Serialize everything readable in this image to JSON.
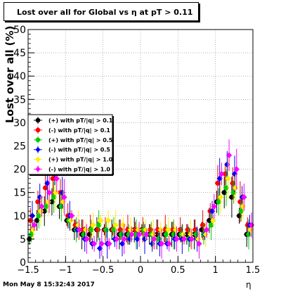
{
  "footer": {
    "timestamp": "Mon May  8 15:32:43 2017"
  },
  "chart_data": {
    "type": "scatter",
    "title": "Lost over all for Global vs   η at pT > 0.11",
    "xlabel": "η",
    "ylabel": "Lost over all (%)",
    "xlim": [
      -1.5,
      1.5
    ],
    "ylim": [
      0,
      50
    ],
    "x_ticks": [
      -1.5,
      -1,
      -0.5,
      0,
      0.5,
      1,
      1.5
    ],
    "x_tick_labels": [
      "−1.5",
      "−1",
      "−0.5",
      "0",
      "0.5",
      "1",
      "1.5"
    ],
    "y_ticks": [
      0,
      5,
      10,
      15,
      20,
      25,
      30,
      35,
      40,
      45,
      50
    ],
    "y_tick_labels": [
      "0",
      "5",
      "10",
      "15",
      "20",
      "25",
      "30",
      "35",
      "40",
      "45",
      "50"
    ],
    "grid": true,
    "legend_position": "center-left",
    "x": [
      -1.45,
      -1.35,
      -1.25,
      -1.15,
      -1.05,
      -0.95,
      -0.85,
      -0.75,
      -0.65,
      -0.55,
      -0.45,
      -0.35,
      -0.25,
      -0.15,
      -0.05,
      0.05,
      0.15,
      0.25,
      0.35,
      0.45,
      0.55,
      0.65,
      0.75,
      0.85,
      0.95,
      1.05,
      1.15,
      1.25,
      1.35,
      1.45
    ],
    "series": [
      {
        "name": "(+) with pT/|q| > 0.1",
        "color": "#000000",
        "marker": "circle",
        "values": [
          5,
          9,
          11,
          13,
          12,
          9,
          7,
          6,
          6,
          7,
          7,
          7,
          6,
          6,
          7,
          7,
          6,
          6,
          6,
          6,
          6,
          6,
          6,
          7,
          9,
          13,
          15,
          14,
          10,
          6
        ]
      },
      {
        "name": "(-) with pT/|q| > 0.1",
        "color": "#ff0000",
        "marker": "circle",
        "values": [
          9,
          13,
          16,
          18,
          15,
          10,
          8,
          7,
          7,
          7,
          7,
          7,
          7,
          7,
          7,
          7,
          7,
          7,
          7,
          7,
          7,
          7,
          7,
          8,
          11,
          17,
          19,
          17,
          13,
          8
        ]
      },
      {
        "name": "(+) with pT/|q| > 0.5",
        "color": "#00cc00",
        "marker": "circle",
        "values": [
          6,
          10,
          12,
          14,
          12,
          9,
          7,
          6,
          7,
          8,
          7,
          7,
          6,
          6,
          6,
          7,
          6,
          5,
          6,
          6,
          6,
          5,
          6,
          6,
          8,
          13,
          16,
          15,
          11,
          6
        ]
      },
      {
        "name": "(-) with pT/|q| > 0.5",
        "color": "#0000ff",
        "marker": "diamond",
        "values": [
          10,
          14,
          17,
          19,
          15,
          10,
          7,
          5,
          4,
          3,
          4,
          5,
          4,
          5,
          5,
          5,
          4,
          4,
          4,
          5,
          5,
          5,
          5,
          6,
          11,
          18,
          21,
          19,
          14,
          8
        ]
      },
      {
        "name": "(+) with pT/|q| > 1.0",
        "color": "#ffee00",
        "marker": "diamond",
        "values": [
          7,
          11,
          13,
          15,
          13,
          9,
          8,
          7,
          8,
          9,
          9,
          8,
          8,
          7,
          7,
          7,
          6,
          7,
          7,
          7,
          6,
          6,
          5,
          6,
          9,
          14,
          18,
          16,
          12,
          7
        ]
      },
      {
        "name": "(-) with pT/|q| > 1.0",
        "color": "#ff00ff",
        "marker": "diamond",
        "values": [
          8,
          12,
          15,
          18,
          14,
          10,
          7,
          5,
          4,
          4,
          4,
          5,
          5,
          6,
          6,
          6,
          5,
          4,
          4,
          5,
          5,
          5,
          4,
          7,
          12,
          19,
          23,
          20,
          14,
          8
        ]
      }
    ]
  }
}
